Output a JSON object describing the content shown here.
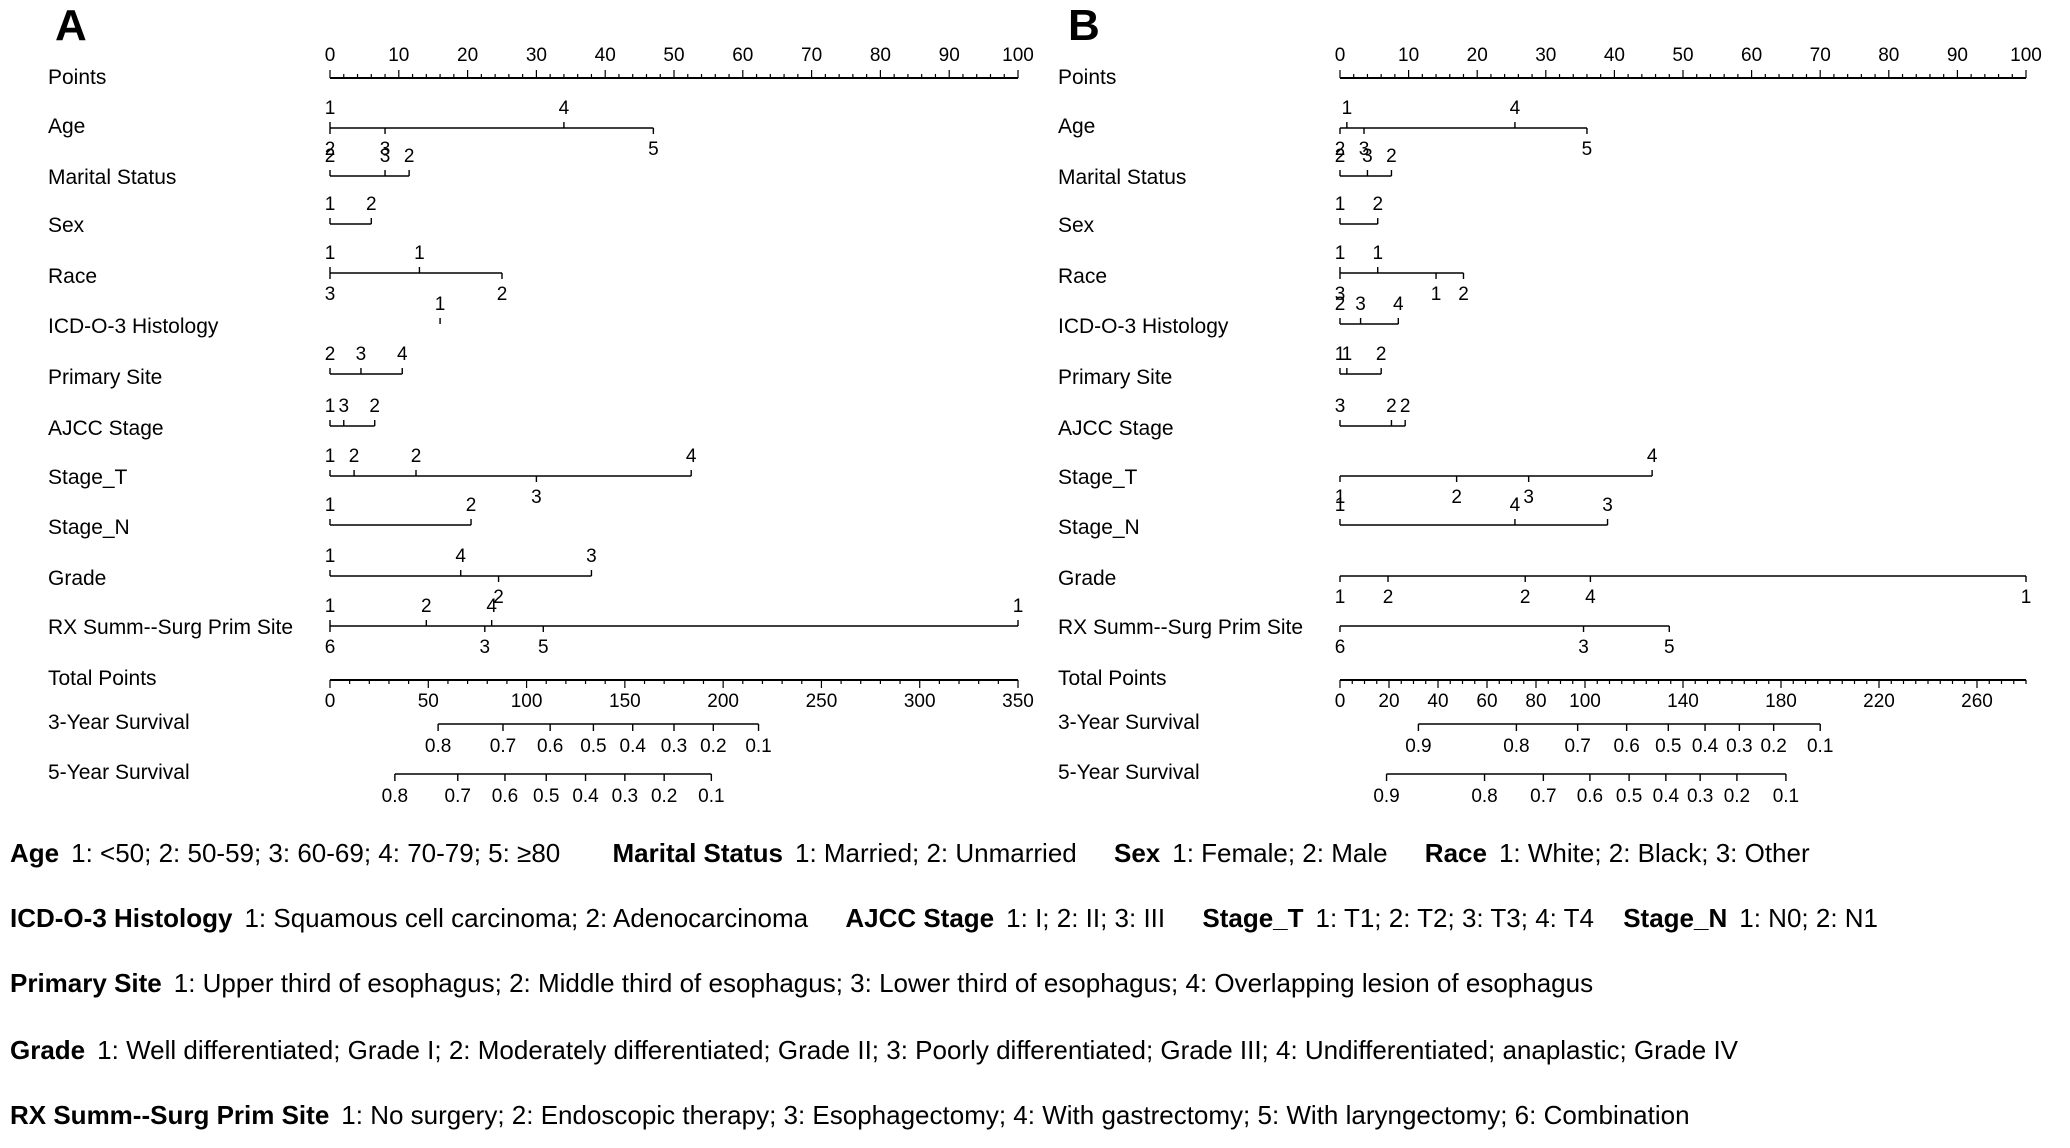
{
  "chart_data": [
    {
      "type": "nomogram",
      "panel": "A",
      "points_axis": {
        "label": "Points",
        "range": [
          0,
          100
        ],
        "major_ticks": [
          0,
          10,
          20,
          30,
          40,
          50,
          60,
          70,
          80,
          90,
          100
        ]
      },
      "variables": [
        {
          "name": "Age",
          "levels": [
            {
              "code": "1",
              "points": 0,
              "side": "above"
            },
            {
              "code": "4",
              "points": 34,
              "side": "above"
            },
            {
              "code": "2",
              "points": 0,
              "side": "below"
            },
            {
              "code": "3",
              "points": 8,
              "side": "below"
            },
            {
              "code": "5",
              "points": 47,
              "side": "below"
            }
          ]
        },
        {
          "name": "Marital Status",
          "levels": [
            {
              "code": "2",
              "points": 0,
              "side": "above"
            },
            {
              "code": "3",
              "points": 8,
              "side": "above"
            },
            {
              "code": "2",
              "points": 11.5,
              "side": "above"
            }
          ]
        },
        {
          "name": "Sex",
          "levels": [
            {
              "code": "1",
              "points": 0,
              "side": "above"
            },
            {
              "code": "2",
              "points": 6,
              "side": "above"
            }
          ]
        },
        {
          "name": "Race",
          "levels": [
            {
              "code": "1",
              "points": 0,
              "side": "above"
            },
            {
              "code": "1",
              "points": 13,
              "side": "above"
            },
            {
              "code": "3",
              "points": 0,
              "side": "below"
            },
            {
              "code": "2",
              "points": 25,
              "side": "below"
            }
          ]
        },
        {
          "name": "ICD-O-3 Histology",
          "levels": [
            {
              "code": "1",
              "points": 16,
              "side": "above"
            }
          ]
        },
        {
          "name": "Primary Site",
          "levels": [
            {
              "code": "2",
              "points": 0,
              "side": "above"
            },
            {
              "code": "3",
              "points": 4.5,
              "side": "above"
            },
            {
              "code": "4",
              "points": 10.5,
              "side": "above"
            }
          ]
        },
        {
          "name": "AJCC Stage",
          "levels": [
            {
              "code": "1",
              "points": 0,
              "side": "above"
            },
            {
              "code": "3",
              "points": 2,
              "side": "above"
            },
            {
              "code": "2",
              "points": 6.5,
              "side": "above"
            }
          ]
        },
        {
          "name": "Stage_T",
          "levels": [
            {
              "code": "1",
              "points": 0,
              "side": "above"
            },
            {
              "code": "2",
              "points": 3.5,
              "side": "above"
            },
            {
              "code": "2",
              "points": 12.5,
              "side": "above"
            },
            {
              "code": "4",
              "points": 52.5,
              "side": "above"
            },
            {
              "code": "3",
              "points": 30,
              "side": "below"
            }
          ]
        },
        {
          "name": "Stage_N",
          "levels": [
            {
              "code": "1",
              "points": 0,
              "side": "above"
            },
            {
              "code": "2",
              "points": 20.5,
              "side": "above"
            }
          ]
        },
        {
          "name": "Grade",
          "levels": [
            {
              "code": "1",
              "points": 0,
              "side": "above"
            },
            {
              "code": "4",
              "points": 19,
              "side": "above"
            },
            {
              "code": "3",
              "points": 38,
              "side": "above"
            },
            {
              "code": "2",
              "points": 24.5,
              "side": "below"
            }
          ]
        },
        {
          "name": "RX Summ--Surg Prim Site",
          "levels": [
            {
              "code": "1",
              "points": 0,
              "side": "above"
            },
            {
              "code": "2",
              "points": 14,
              "side": "above"
            },
            {
              "code": "4",
              "points": 23.5,
              "side": "above"
            },
            {
              "code": "1",
              "points": 100,
              "side": "above"
            },
            {
              "code": "6",
              "points": 0,
              "side": "below"
            },
            {
              "code": "3",
              "points": 22.5,
              "side": "below"
            },
            {
              "code": "5",
              "points": 31,
              "side": "below"
            }
          ]
        }
      ],
      "total_points": {
        "label": "Total Points",
        "range": [
          0,
          350
        ],
        "labels": [
          0,
          50,
          100,
          150,
          200,
          250,
          300,
          350
        ]
      },
      "survival": [
        {
          "label": "3-Year Survival",
          "ticks": [
            {
              "p": 0.8,
              "tp": 55
            },
            {
              "p": 0.7,
              "tp": 88
            },
            {
              "p": 0.6,
              "tp": 112
            },
            {
              "p": 0.5,
              "tp": 134
            },
            {
              "p": 0.4,
              "tp": 154
            },
            {
              "p": 0.3,
              "tp": 175
            },
            {
              "p": 0.2,
              "tp": 195
            },
            {
              "p": 0.1,
              "tp": 218
            }
          ]
        },
        {
          "label": "5-Year Survival",
          "ticks": [
            {
              "p": 0.8,
              "tp": 33
            },
            {
              "p": 0.7,
              "tp": 65
            },
            {
              "p": 0.6,
              "tp": 89
            },
            {
              "p": 0.5,
              "tp": 110
            },
            {
              "p": 0.4,
              "tp": 130
            },
            {
              "p": 0.3,
              "tp": 150
            },
            {
              "p": 0.2,
              "tp": 170
            },
            {
              "p": 0.1,
              "tp": 194
            }
          ]
        }
      ]
    },
    {
      "type": "nomogram",
      "panel": "B",
      "points_axis": {
        "label": "Points",
        "range": [
          0,
          100
        ],
        "major_ticks": [
          0,
          10,
          20,
          30,
          40,
          50,
          60,
          70,
          80,
          90,
          100
        ]
      },
      "variables": [
        {
          "name": "Age",
          "levels": [
            {
              "code": "1",
              "points": 1,
              "side": "above"
            },
            {
              "code": "4",
              "points": 25.5,
              "side": "above"
            },
            {
              "code": "2",
              "points": 0,
              "side": "below"
            },
            {
              "code": "3",
              "points": 3.5,
              "side": "below"
            },
            {
              "code": "5",
              "points": 36,
              "side": "below"
            }
          ]
        },
        {
          "name": "Marital Status",
          "levels": [
            {
              "code": "2",
              "points": 0,
              "side": "above"
            },
            {
              "code": "3",
              "points": 4,
              "side": "above"
            },
            {
              "code": "2",
              "points": 7.5,
              "side": "above"
            }
          ]
        },
        {
          "name": "Sex",
          "levels": [
            {
              "code": "1",
              "points": 0,
              "side": "above"
            },
            {
              "code": "2",
              "points": 5.5,
              "side": "above"
            }
          ]
        },
        {
          "name": "Race",
          "levels": [
            {
              "code": "1",
              "points": 0,
              "side": "above"
            },
            {
              "code": "1",
              "points": 5.5,
              "side": "above"
            },
            {
              "code": "3",
              "points": 0,
              "side": "below"
            },
            {
              "code": "1",
              "points": 14,
              "side": "below"
            },
            {
              "code": "2",
              "points": 18,
              "side": "below"
            }
          ]
        },
        {
          "name": "ICD-O-3 Histology",
          "levels": [
            {
              "code": "2",
              "points": 0,
              "side": "above"
            },
            {
              "code": "3",
              "points": 3,
              "side": "above"
            },
            {
              "code": "4",
              "points": 8.5,
              "side": "above"
            }
          ]
        },
        {
          "name": "Primary Site",
          "levels": [
            {
              "code": "1",
              "points": 0,
              "side": "above"
            },
            {
              "code": "1",
              "points": 1,
              "side": "above"
            },
            {
              "code": "2",
              "points": 6,
              "side": "above"
            }
          ]
        },
        {
          "name": "AJCC Stage",
          "levels": [
            {
              "code": "3",
              "points": 0,
              "side": "above"
            },
            {
              "code": "2",
              "points": 7.5,
              "side": "above"
            },
            {
              "code": "2",
              "points": 9.5,
              "side": "above"
            }
          ]
        },
        {
          "name": "Stage_T",
          "levels": [
            {
              "code": "4",
              "points": 45.5,
              "side": "above"
            },
            {
              "code": "1",
              "points": 0,
              "side": "below"
            },
            {
              "code": "2",
              "points": 17,
              "side": "below"
            },
            {
              "code": "3",
              "points": 27.5,
              "side": "below"
            }
          ]
        },
        {
          "name": "Stage_N",
          "levels": [
            {
              "code": "1",
              "points": 0,
              "side": "above"
            },
            {
              "code": "4",
              "points": 25.5,
              "side": "above"
            },
            {
              "code": "3",
              "points": 39,
              "side": "above"
            }
          ]
        },
        {
          "name": "Grade",
          "levels": [
            {
              "code": "1",
              "points": 0,
              "side": "below"
            },
            {
              "code": "2",
              "points": 7,
              "side": "below"
            },
            {
              "code": "2",
              "points": 27,
              "side": "below"
            },
            {
              "code": "4",
              "points": 36.5,
              "side": "below"
            },
            {
              "code": "1",
              "points": 100,
              "side": "below"
            }
          ]
        },
        {
          "name": "RX Summ--Surg Prim Site",
          "levels": [
            {
              "code": "6",
              "points": 0,
              "side": "below"
            },
            {
              "code": "3",
              "points": 35.5,
              "side": "below"
            },
            {
              "code": "5",
              "points": 48,
              "side": "below"
            }
          ]
        }
      ],
      "total_points": {
        "label": "Total Points",
        "range": [
          0,
          280
        ],
        "labels": [
          0,
          20,
          40,
          60,
          80,
          100,
          140,
          180,
          220,
          260
        ]
      },
      "survival": [
        {
          "label": "3-Year Survival",
          "ticks": [
            {
              "p": 0.9,
              "tp": 32
            },
            {
              "p": 0.8,
              "tp": 72
            },
            {
              "p": 0.7,
              "tp": 97
            },
            {
              "p": 0.6,
              "tp": 117
            },
            {
              "p": 0.5,
              "tp": 134
            },
            {
              "p": 0.4,
              "tp": 149
            },
            {
              "p": 0.3,
              "tp": 163
            },
            {
              "p": 0.2,
              "tp": 177
            },
            {
              "p": 0.1,
              "tp": 196
            }
          ]
        },
        {
          "label": "5-Year Survival",
          "ticks": [
            {
              "p": 0.9,
              "tp": 19
            },
            {
              "p": 0.8,
              "tp": 59
            },
            {
              "p": 0.7,
              "tp": 83
            },
            {
              "p": 0.6,
              "tp": 102
            },
            {
              "p": 0.5,
              "tp": 118
            },
            {
              "p": 0.4,
              "tp": 133
            },
            {
              "p": 0.3,
              "tp": 147
            },
            {
              "p": 0.2,
              "tp": 162
            },
            {
              "p": 0.1,
              "tp": 182
            }
          ]
        }
      ]
    }
  ],
  "legend": [
    [
      {
        "key": "Age",
        "desc": "1: <50; 2: 50-59; 3: 60-69; 4: 70-79; 5: ≥80"
      },
      {
        "key": "Marital Status",
        "desc": "1: Married; 2: Unmarried"
      },
      {
        "key": "Sex",
        "desc": "1: Female; 2: Male"
      },
      {
        "key": "Race",
        "desc": "1: White; 2: Black; 3: Other"
      }
    ],
    [
      {
        "key": "ICD-O-3 Histology",
        "desc": "1: Squamous cell carcinoma; 2: Adenocarcinoma"
      },
      {
        "key": "AJCC Stage",
        "desc": "1: I; 2: II; 3: III"
      },
      {
        "key": "Stage_T",
        "desc": "1: T1; 2: T2; 3: T3; 4: T4"
      },
      {
        "key": "Stage_N",
        "desc": "1: N0; 2: N1"
      }
    ],
    [
      {
        "key": "Primary Site",
        "desc": "1: Upper third of esophagus; 2: Middle third of esophagus; 3: Lower third of esophagus;  4: Overlapping lesion of esophagus"
      }
    ],
    [
      {
        "key": "Grade",
        "desc": "1: Well differentiated; Grade I; 2: Moderately differentiated; Grade II; 3: Poorly differentiated; Grade III;  4: Undifferentiated; anaplastic; Grade IV"
      }
    ],
    [
      {
        "key": "RX Summ--Surg Prim Site",
        "desc": "1: No surgery; 2: Endoscopic therapy; 3: Esophagectomy; 4: With gastrectomy;  5: With laryngectomy; 6: Combination"
      }
    ]
  ]
}
